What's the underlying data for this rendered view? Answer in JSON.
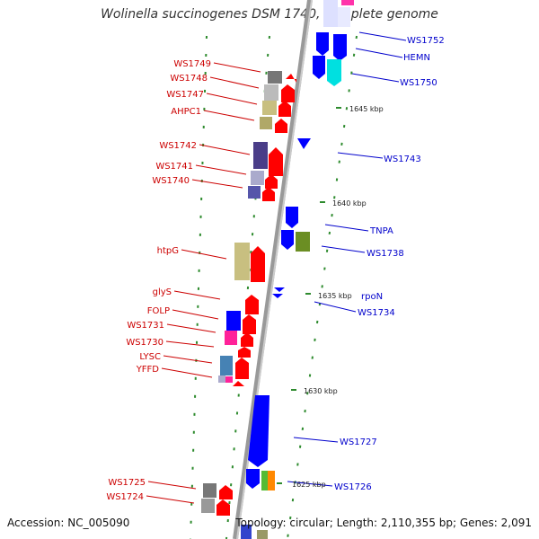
{
  "title": "Wolinella succinogenes DSM 1740, complete genome",
  "footer": {
    "accession": "Accession: NC_005090",
    "summary": "Topology: circular; Length: 2,110,355 bp; Genes: 2,091"
  },
  "colors": {
    "left_label": "#cc0000",
    "right_label": "#0000cc",
    "forward_gene": "#ff0000",
    "reverse_gene": "#0000ff",
    "backbone": "#999999",
    "guide": "#2e8b2e"
  },
  "left_genes": [
    {
      "name": "WS1749"
    },
    {
      "name": "WS1748"
    },
    {
      "name": "WS1747"
    },
    {
      "name": "AHPC1"
    },
    {
      "name": "WS1742"
    },
    {
      "name": "WS1741"
    },
    {
      "name": "WS1740"
    },
    {
      "name": "htpG"
    },
    {
      "name": "glyS"
    },
    {
      "name": "FOLP"
    },
    {
      "name": "WS1731"
    },
    {
      "name": "WS1730"
    },
    {
      "name": "LYSC"
    },
    {
      "name": "YFFD"
    },
    {
      "name": "WS1725"
    },
    {
      "name": "WS1724"
    }
  ],
  "right_genes": [
    {
      "name": "WS1752"
    },
    {
      "name": "HEMN"
    },
    {
      "name": "WS1750"
    },
    {
      "name": "WS1743"
    },
    {
      "name": "TNPA"
    },
    {
      "name": "WS1738"
    },
    {
      "name": "rpoN"
    },
    {
      "name": "WS1734"
    },
    {
      "name": "WS1727"
    },
    {
      "name": "WS1726"
    }
  ],
  "position_ticks": [
    "1645 kbp",
    "1640 kbp",
    "1635 kbp",
    "1630 kbp",
    "1625 kbp"
  ]
}
